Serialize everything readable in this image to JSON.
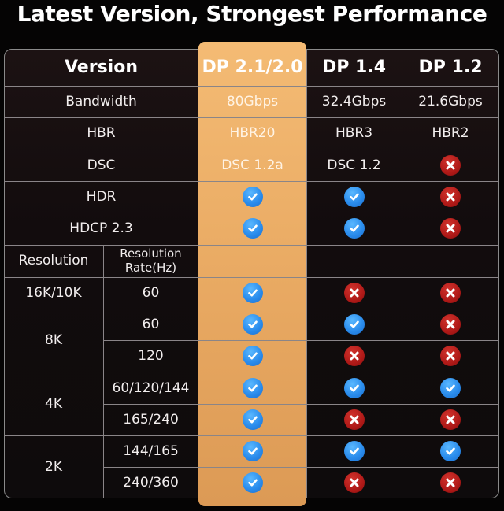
{
  "title": "Latest Version, Strongest Performance",
  "colors": {
    "highlight": "#eaaa62",
    "check": "#2b8ded",
    "cross": "#b01a18",
    "background": "#050404"
  },
  "header": {
    "label": "Version",
    "columns": [
      "DP 2.1/2.0",
      "DP 1.4",
      "DP 1.2"
    ]
  },
  "features": [
    {
      "label": "Bandwidth",
      "values": [
        "80Gbps",
        "32.4Gbps",
        "21.6Gbps"
      ]
    },
    {
      "label": "HBR",
      "values": [
        "HBR20",
        "HBR3",
        "HBR2"
      ]
    },
    {
      "label": "DSC",
      "values": [
        "DSC 1.2a",
        "DSC 1.2",
        "cross"
      ]
    },
    {
      "label": "HDR",
      "values": [
        "check",
        "check",
        "cross"
      ]
    },
    {
      "label": "HDCP 2.3",
      "values": [
        "check",
        "check",
        "cross"
      ]
    }
  ],
  "subheader": {
    "resolution": "Resolution",
    "rate": "Resolution Rate(Hz)"
  },
  "resolutions": [
    {
      "label": "16K/10K",
      "rates": [
        {
          "rate": "60",
          "values": [
            "check",
            "cross",
            "cross"
          ]
        }
      ]
    },
    {
      "label": "8K",
      "rates": [
        {
          "rate": "60",
          "values": [
            "check",
            "check",
            "cross"
          ]
        },
        {
          "rate": "120",
          "values": [
            "check",
            "cross",
            "cross"
          ]
        }
      ]
    },
    {
      "label": "4K",
      "rates": [
        {
          "rate": "60/120/144",
          "values": [
            "check",
            "check",
            "check"
          ]
        },
        {
          "rate": "165/240",
          "values": [
            "check",
            "cross",
            "cross"
          ]
        }
      ]
    },
    {
      "label": "2K",
      "rates": [
        {
          "rate": "144/165",
          "values": [
            "check",
            "check",
            "check"
          ]
        },
        {
          "rate": "240/360",
          "values": [
            "check",
            "cross",
            "cross"
          ]
        }
      ]
    }
  ]
}
